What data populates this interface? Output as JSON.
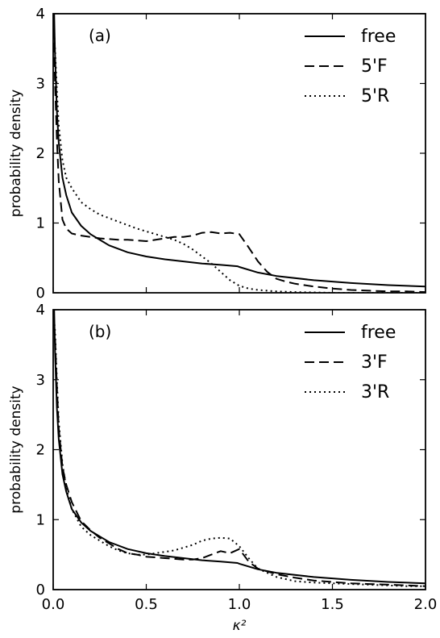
{
  "chart_data": [
    {
      "type": "line",
      "panel_label": "(a)",
      "xlabel": "",
      "ylabel": "probability density",
      "xlim": [
        0,
        2
      ],
      "ylim": [
        0,
        4
      ],
      "xticks": [
        "0.0",
        "0.5",
        "1.0",
        "1.5",
        "2.0"
      ],
      "yticks": [
        "0",
        "1",
        "2",
        "3",
        "4"
      ],
      "legend_position": "top-right",
      "series": [
        {
          "name": "free",
          "style": "solid",
          "x": [
            0.005,
            0.01,
            0.02,
            0.03,
            0.05,
            0.07,
            0.1,
            0.15,
            0.2,
            0.3,
            0.4,
            0.5,
            0.6,
            0.7,
            0.8,
            0.9,
            0.99,
            1.0,
            1.1,
            1.2,
            1.4,
            1.6,
            1.8,
            2.0
          ],
          "y": [
            4.0,
            3.4,
            2.6,
            2.15,
            1.65,
            1.4,
            1.15,
            0.96,
            0.84,
            0.68,
            0.58,
            0.52,
            0.48,
            0.45,
            0.42,
            0.4,
            0.38,
            0.37,
            0.29,
            0.24,
            0.18,
            0.14,
            0.11,
            0.09
          ]
        },
        {
          "name": "5'F",
          "style": "dashed",
          "x": [
            0.0,
            0.01,
            0.02,
            0.03,
            0.05,
            0.07,
            0.1,
            0.15,
            0.2,
            0.25,
            0.3,
            0.35,
            0.4,
            0.45,
            0.5,
            0.55,
            0.6,
            0.65,
            0.7,
            0.75,
            0.8,
            0.85,
            0.9,
            0.95,
            1.0,
            1.05,
            1.1,
            1.15,
            1.2,
            1.25,
            1.3,
            1.4,
            1.5,
            1.6,
            1.7,
            1.8,
            1.9,
            2.0
          ],
          "y": [
            4.0,
            3.0,
            2.2,
            1.6,
            1.05,
            0.92,
            0.85,
            0.82,
            0.8,
            0.78,
            0.77,
            0.76,
            0.76,
            0.75,
            0.74,
            0.76,
            0.78,
            0.8,
            0.8,
            0.82,
            0.86,
            0.87,
            0.85,
            0.86,
            0.84,
            0.65,
            0.45,
            0.3,
            0.2,
            0.16,
            0.13,
            0.09,
            0.06,
            0.04,
            0.03,
            0.02,
            0.02,
            0.01
          ]
        },
        {
          "name": "5'R",
          "style": "dotted",
          "x": [
            0.0,
            0.01,
            0.02,
            0.03,
            0.05,
            0.07,
            0.1,
            0.15,
            0.2,
            0.25,
            0.3,
            0.35,
            0.4,
            0.45,
            0.5,
            0.55,
            0.6,
            0.65,
            0.7,
            0.75,
            0.8,
            0.85,
            0.9,
            0.95,
            1.0,
            1.05,
            1.1,
            1.2,
            1.3,
            1.5,
            1.7,
            2.0
          ],
          "y": [
            4.0,
            3.5,
            2.9,
            2.4,
            1.9,
            1.65,
            1.5,
            1.3,
            1.2,
            1.12,
            1.07,
            1.02,
            0.97,
            0.92,
            0.88,
            0.84,
            0.8,
            0.76,
            0.7,
            0.62,
            0.52,
            0.42,
            0.3,
            0.18,
            0.1,
            0.06,
            0.04,
            0.02,
            0.01,
            0.0,
            0.0,
            0.0
          ]
        }
      ]
    },
    {
      "type": "line",
      "panel_label": "(b)",
      "xlabel": "κ²",
      "ylabel": "probability density",
      "xlim": [
        0,
        2
      ],
      "ylim": [
        0,
        4
      ],
      "xticks": [
        "0.0",
        "0.5",
        "1.0",
        "1.5",
        "2.0"
      ],
      "yticks": [
        "0",
        "1",
        "2",
        "3",
        "4"
      ],
      "legend_position": "top-right",
      "series": [
        {
          "name": "free",
          "style": "solid",
          "x": [
            0.005,
            0.01,
            0.02,
            0.03,
            0.05,
            0.07,
            0.1,
            0.15,
            0.2,
            0.3,
            0.4,
            0.5,
            0.6,
            0.7,
            0.8,
            0.9,
            0.99,
            1.0,
            1.1,
            1.2,
            1.4,
            1.6,
            1.8,
            2.0
          ],
          "y": [
            4.0,
            3.4,
            2.6,
            2.15,
            1.65,
            1.4,
            1.15,
            0.96,
            0.84,
            0.68,
            0.58,
            0.52,
            0.48,
            0.45,
            0.42,
            0.4,
            0.38,
            0.37,
            0.29,
            0.24,
            0.18,
            0.14,
            0.11,
            0.09
          ]
        },
        {
          "name": "3'F",
          "style": "dashed",
          "x": [
            0.0,
            0.01,
            0.02,
            0.03,
            0.05,
            0.07,
            0.1,
            0.15,
            0.2,
            0.25,
            0.3,
            0.35,
            0.4,
            0.45,
            0.5,
            0.55,
            0.6,
            0.65,
            0.7,
            0.75,
            0.8,
            0.85,
            0.9,
            0.95,
            1.0,
            1.05,
            1.1,
            1.2,
            1.3,
            1.4,
            1.5,
            1.6,
            1.7,
            1.8,
            1.9,
            2.0
          ],
          "y": [
            4.0,
            3.6,
            2.9,
            2.3,
            1.75,
            1.5,
            1.25,
            0.98,
            0.85,
            0.74,
            0.66,
            0.58,
            0.52,
            0.5,
            0.47,
            0.46,
            0.45,
            0.44,
            0.43,
            0.43,
            0.45,
            0.5,
            0.55,
            0.52,
            0.58,
            0.4,
            0.3,
            0.22,
            0.17,
            0.13,
            0.11,
            0.09,
            0.08,
            0.07,
            0.06,
            0.05
          ]
        },
        {
          "name": "3'R",
          "style": "dotted",
          "x": [
            0.0,
            0.01,
            0.02,
            0.03,
            0.05,
            0.07,
            0.1,
            0.15,
            0.2,
            0.25,
            0.3,
            0.35,
            0.4,
            0.45,
            0.5,
            0.55,
            0.6,
            0.65,
            0.7,
            0.75,
            0.8,
            0.85,
            0.9,
            0.95,
            1.0,
            1.05,
            1.1,
            1.2,
            1.3,
            1.4,
            1.5,
            1.6,
            1.7,
            1.8,
            1.9,
            2.0
          ],
          "y": [
            4.0,
            3.7,
            3.0,
            2.4,
            1.8,
            1.45,
            1.15,
            0.9,
            0.78,
            0.7,
            0.62,
            0.56,
            0.52,
            0.5,
            0.5,
            0.52,
            0.54,
            0.56,
            0.6,
            0.64,
            0.7,
            0.73,
            0.74,
            0.73,
            0.62,
            0.45,
            0.3,
            0.18,
            0.12,
            0.1,
            0.09,
            0.08,
            0.07,
            0.06,
            0.05,
            0.05
          ]
        }
      ]
    }
  ]
}
